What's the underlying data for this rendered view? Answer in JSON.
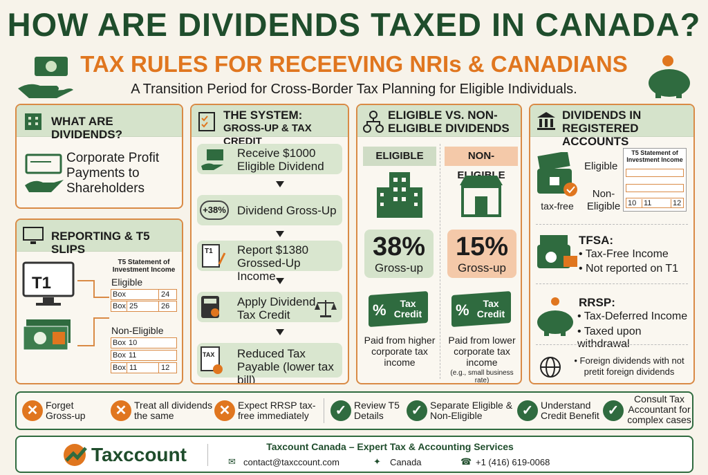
{
  "header": {
    "title": "HOW ARE DIVIDENDS TAXED IN CANADA?",
    "subtitle": "TAX RULES FOR RECEEVING NRIs & CANADIANS",
    "tagline": "A Transition Period for Cross-Border Tax Planning for Eligible Individuals."
  },
  "what_are_dividends": {
    "title": "WHAT ARE DIVIDENDS?",
    "text": "Corporate Profit Payments to Shareholders"
  },
  "reporting": {
    "title": "REPORTING & T5 SLIPS",
    "monitor_label": "T1",
    "slip_title": "T5 Statement of Investment Income",
    "eligible_label": "Eligible",
    "eligible_rows": [
      [
        "Box",
        "24"
      ],
      [
        "Box",
        "25",
        "26"
      ]
    ],
    "non_eligible_label": "Non-Eligible",
    "non_eligible_rows": [
      [
        "Box",
        "10"
      ],
      [
        "Box",
        "11"
      ],
      [
        "Box",
        "11",
        "12"
      ]
    ]
  },
  "system": {
    "title_lines": [
      "THE SYSTEM:",
      "GROSS-UP & TAX CREDIT"
    ],
    "steps": [
      {
        "text": "Receive $1000 Eligible Dividend"
      },
      {
        "badge": "+38%",
        "text": "Dividend Gross-Up"
      },
      {
        "icon": "T1",
        "text": "Report $1380 Grossed-Up Income"
      },
      {
        "text": "Apply Dividend Tax Credit"
      },
      {
        "icon": "TAX",
        "text": "Reduced Tax Payable (lower tax bill)"
      }
    ]
  },
  "eligible_vs": {
    "title": "ELIGIBLE VS. NON-ELIGIBLE DIVIDENDS",
    "columns": [
      {
        "label": "ELIGIBLE",
        "rate": "38%",
        "rate_label": "Gross-up",
        "badge": "Tax Credit",
        "note": "Paid from higher corporate tax income"
      },
      {
        "label": "NON-ELIGIBLE",
        "rate": "15%",
        "rate_label": "Gross-up",
        "badge": "Tax Credit",
        "note": "Paid from lower corporate tax income",
        "note_small": "(e.g., small business rate)"
      }
    ]
  },
  "registered": {
    "title": "DIVIDENDS IN REGISTERED ACCOUNTS",
    "tax_free": "tax-free",
    "eligible_label": "Eligible",
    "non_eligible_label": "Non-Eligible",
    "slip_title": "T5 Statement of Investment Income",
    "slip_boxes": [
      "10",
      "11",
      "12"
    ],
    "tfsa": {
      "title": "TFSA:",
      "points": [
        "• Tax-Free Income",
        "• Not reported on T1"
      ]
    },
    "rrsp": {
      "title": "RRSP:",
      "points": [
        "• Tax-Deferred Income",
        "• Taxed upon withdrawal"
      ]
    },
    "foreign": "• Foreign dividends with not pretit foreign dividends"
  },
  "tips": {
    "donts": [
      "Forget Gross-up",
      "Treat all dividends the same",
      "Expect RRSP tax-free immediately"
    ],
    "dos": [
      "Review T5 Details",
      "Separate Eligible & Non-Eligible",
      "Understand Credit Benefit",
      "Consult Tax Accountant for complex cases"
    ]
  },
  "footer": {
    "logo": "Taxccount",
    "company": "Taxcount Canada – Expert Tax & Accounting Services",
    "email": "contact@taxccount.com",
    "location": "Canada",
    "phone": "+1 (416) 619-0068"
  }
}
